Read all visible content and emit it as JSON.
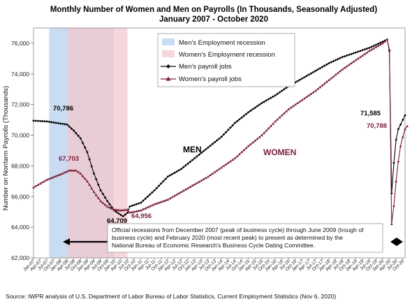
{
  "chart_data": {
    "type": "line",
    "title": "Monthly Number of Women and Men on Payrolls (In Thousands, Seasonally Adjusted)",
    "subtitle": "January 2007 - October 2020",
    "ylabel": "Number on Nonfarm Payrolls (Thousands)",
    "ylim": [
      62000,
      77000
    ],
    "yticks": [
      "62,000",
      "64,000",
      "66,000",
      "68,000",
      "70,000",
      "72,000",
      "74,000",
      "76,000"
    ],
    "x_tick_labels": [
      "Jan-07",
      "Apr-07",
      "Jul-07",
      "Oct-07",
      "Jan-08",
      "Apr-08",
      "Jul-08",
      "Oct-08",
      "Jan-09",
      "Apr-09",
      "Jul-09",
      "Oct-09",
      "Jan-10",
      "Apr-10",
      "Jul-10",
      "Oct-10",
      "Jan-11",
      "Apr-11",
      "Jul-11",
      "Oct-11",
      "Jan-12",
      "Apr-12",
      "Jul-12",
      "Oct-12",
      "Jan-13",
      "Apr-13",
      "Jul-13",
      "Oct-13",
      "Jan-14",
      "Apr-14",
      "Jul-14",
      "Oct-14",
      "Jan-15",
      "Apr-15",
      "Jul-15",
      "Oct-15",
      "Jan-16",
      "Apr-16",
      "Jul-16",
      "Oct-16",
      "Jan-17",
      "Apr-17",
      "Jul-17",
      "Oct-17",
      "Jan-18",
      "Apr-18",
      "Jul-18",
      "Oct-18",
      "Jan-19",
      "Apr-19",
      "Jul-19",
      "Oct-19",
      "Jan-20",
      "Apr-20",
      "Jul-20",
      "Oct-20"
    ],
    "legend": [
      {
        "label": "Men's Employment recession",
        "color": "#c9dcf2",
        "kind": "band"
      },
      {
        "label": "Women's Employment  recession",
        "color": "#f7d6dc",
        "kind": "band"
      },
      {
        "label": "Men's payroll jobs",
        "color": "#000000",
        "kind": "line-diamond"
      },
      {
        "label": "Women's payroll jobs",
        "color": "#7a1f3d",
        "kind": "line-triangle"
      }
    ],
    "recession_bands": [
      {
        "name": "Men's Employment recession",
        "start": 2007.583,
        "end": 2008.25,
        "color": "#c9dcf2"
      },
      {
        "name": "Women's Employment  recession",
        "start": 2008.25,
        "end": 2010.0,
        "color": "#e8ccd6"
      },
      {
        "name": "Women's Employment  recession",
        "start": 2010.0,
        "end": 2010.5,
        "color": "#f7d6dc"
      }
    ],
    "series": [
      {
        "name": "Men's payroll jobs",
        "color": "#000000",
        "keypoints": [
          [
            2007.0,
            70950
          ],
          [
            2007.5,
            70900
          ],
          [
            2007.917,
            70786
          ],
          [
            2008.25,
            70700
          ],
          [
            2008.5,
            70300
          ],
          [
            2008.75,
            69800
          ],
          [
            2009.0,
            68900
          ],
          [
            2009.25,
            67500
          ],
          [
            2009.5,
            66400
          ],
          [
            2009.75,
            65700
          ],
          [
            2010.0,
            65100
          ],
          [
            2010.167,
            64900
          ],
          [
            2010.33,
            64709
          ],
          [
            2010.5,
            64950
          ],
          [
            2010.583,
            65350
          ],
          [
            2011.0,
            65600
          ],
          [
            2011.5,
            66400
          ],
          [
            2012.0,
            67300
          ],
          [
            2012.5,
            67800
          ],
          [
            2013.0,
            68500
          ],
          [
            2013.5,
            69200
          ],
          [
            2014.0,
            69900
          ],
          [
            2014.5,
            70800
          ],
          [
            2015.0,
            71500
          ],
          [
            2015.5,
            72100
          ],
          [
            2016.0,
            72600
          ],
          [
            2016.5,
            73200
          ],
          [
            2017.0,
            73700
          ],
          [
            2017.5,
            74200
          ],
          [
            2018.0,
            74700
          ],
          [
            2018.5,
            75100
          ],
          [
            2019.0,
            75400
          ],
          [
            2019.5,
            75700
          ],
          [
            2020.0,
            76100
          ],
          [
            2020.167,
            76250
          ],
          [
            2020.25,
            75500
          ],
          [
            2020.333,
            66200
          ],
          [
            2020.417,
            68200
          ],
          [
            2020.5,
            69700
          ],
          [
            2020.583,
            70400
          ],
          [
            2020.667,
            70700
          ],
          [
            2020.75,
            71000
          ],
          [
            2020.833,
            71300
          ]
        ]
      },
      {
        "name": "Women's payroll jobs",
        "color": "#7a1f3d",
        "keypoints": [
          [
            2007.0,
            66600
          ],
          [
            2007.5,
            67100
          ],
          [
            2008.0,
            67450
          ],
          [
            2008.333,
            67703
          ],
          [
            2008.583,
            67700
          ],
          [
            2008.75,
            67500
          ],
          [
            2009.0,
            67000
          ],
          [
            2009.25,
            66300
          ],
          [
            2009.5,
            65700
          ],
          [
            2009.75,
            65350
          ],
          [
            2010.0,
            65150
          ],
          [
            2010.25,
            65100
          ],
          [
            2010.5,
            65150
          ],
          [
            2010.583,
            64956
          ],
          [
            2011.0,
            65100
          ],
          [
            2011.5,
            65500
          ],
          [
            2012.0,
            65800
          ],
          [
            2012.5,
            66300
          ],
          [
            2013.0,
            66800
          ],
          [
            2013.5,
            67300
          ],
          [
            2014.0,
            67900
          ],
          [
            2014.5,
            68500
          ],
          [
            2015.0,
            69300
          ],
          [
            2015.5,
            70000
          ],
          [
            2016.0,
            70900
          ],
          [
            2016.5,
            71700
          ],
          [
            2017.0,
            72300
          ],
          [
            2017.5,
            72900
          ],
          [
            2018.0,
            73600
          ],
          [
            2018.5,
            74300
          ],
          [
            2019.0,
            74900
          ],
          [
            2019.5,
            75500
          ],
          [
            2020.0,
            76000
          ],
          [
            2020.167,
            76250
          ],
          [
            2020.25,
            75600
          ],
          [
            2020.333,
            64200
          ],
          [
            2020.417,
            65400
          ],
          [
            2020.5,
            67000
          ],
          [
            2020.583,
            68300
          ],
          [
            2020.667,
            69300
          ],
          [
            2020.75,
            69900
          ],
          [
            2020.833,
            70400
          ],
          [
            2020.917,
            70600
          ]
        ]
      }
    ],
    "annotations": [
      {
        "text": "70,786",
        "color": "#000000"
      },
      {
        "text": "67,703",
        "color": "#7a1f3d"
      },
      {
        "text": "64,709",
        "color": "#000000"
      },
      {
        "text": "64,956",
        "color": "#7a1f3d"
      },
      {
        "text": "71,585",
        "color": "#000000"
      },
      {
        "text": "70,788",
        "color": "#7a1f3d"
      }
    ],
    "series_labels": [
      {
        "text": "MEN",
        "color": "#000000"
      },
      {
        "text": "WOMEN",
        "color": "#7a1f3d"
      }
    ],
    "note": "Official recessions from December 2007 (peak of business cycle) through June 2009 (trough of business cycle) and February 2020 (most recent peak) to present as determined by the National Bureau of Economic Research's Business Cycle Dating Committee.",
    "source": "Source: IWPR analysis of U.S. Department of Labor Bureau of Labor Statistics, Current Employment Statistics (Nov 6, 2020)"
  }
}
